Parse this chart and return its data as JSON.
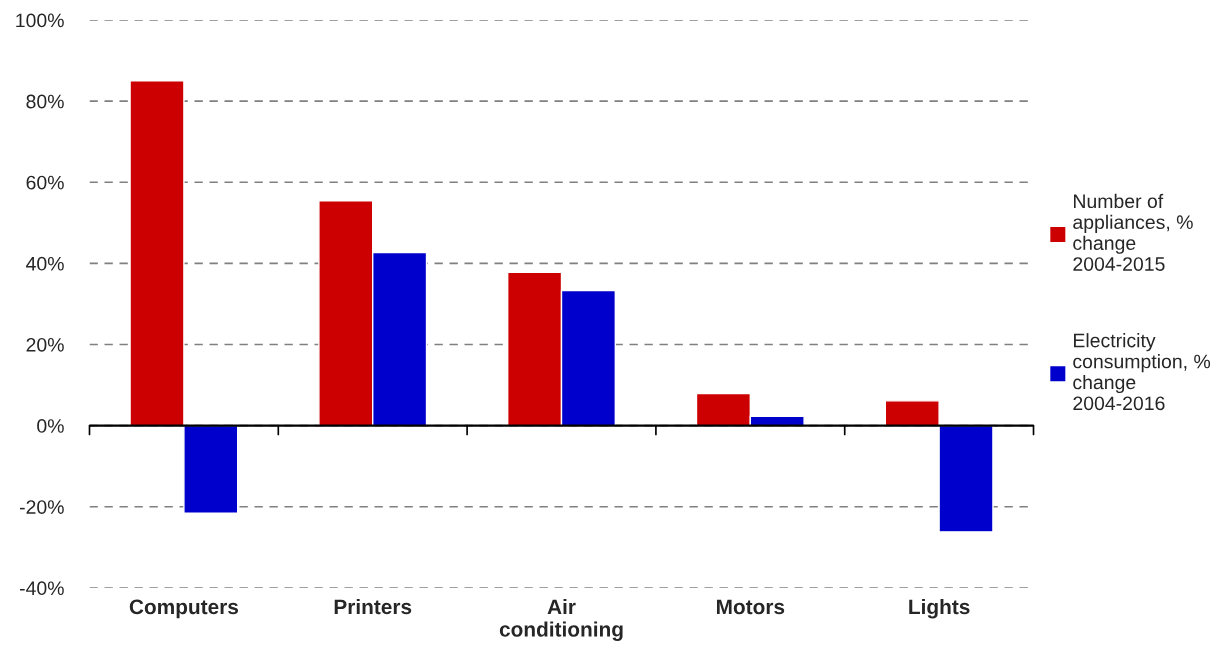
{
  "chart_data": {
    "type": "bar",
    "categories": [
      "Computers",
      "Printers",
      "Air\nconditioning",
      "Motors",
      "Lights"
    ],
    "series": [
      {
        "name": "Number of appliances, % change 2004-2015",
        "color": "#cc0000",
        "values": [
          85,
          55.4,
          37.8,
          7.9,
          6.1
        ]
      },
      {
        "name": "Electricity consumption, % change 2004-2016",
        "color": "#0000cc",
        "values": [
          -21.6,
          42.7,
          33.3,
          2.3,
          -26.2
        ]
      }
    ],
    "ylim": [
      -40,
      100
    ],
    "yticks": [
      {
        "value": -40,
        "label": "-40%"
      },
      {
        "value": -20,
        "label": "-20%"
      },
      {
        "value": 0,
        "label": "0%"
      },
      {
        "value": 20,
        "label": "20%"
      },
      {
        "value": 40,
        "label": "40%"
      },
      {
        "value": 60,
        "label": "60%"
      },
      {
        "value": 80,
        "label": "80%"
      },
      {
        "value": 100,
        "label": "100%"
      }
    ],
    "grid": "y",
    "legend": "right"
  }
}
